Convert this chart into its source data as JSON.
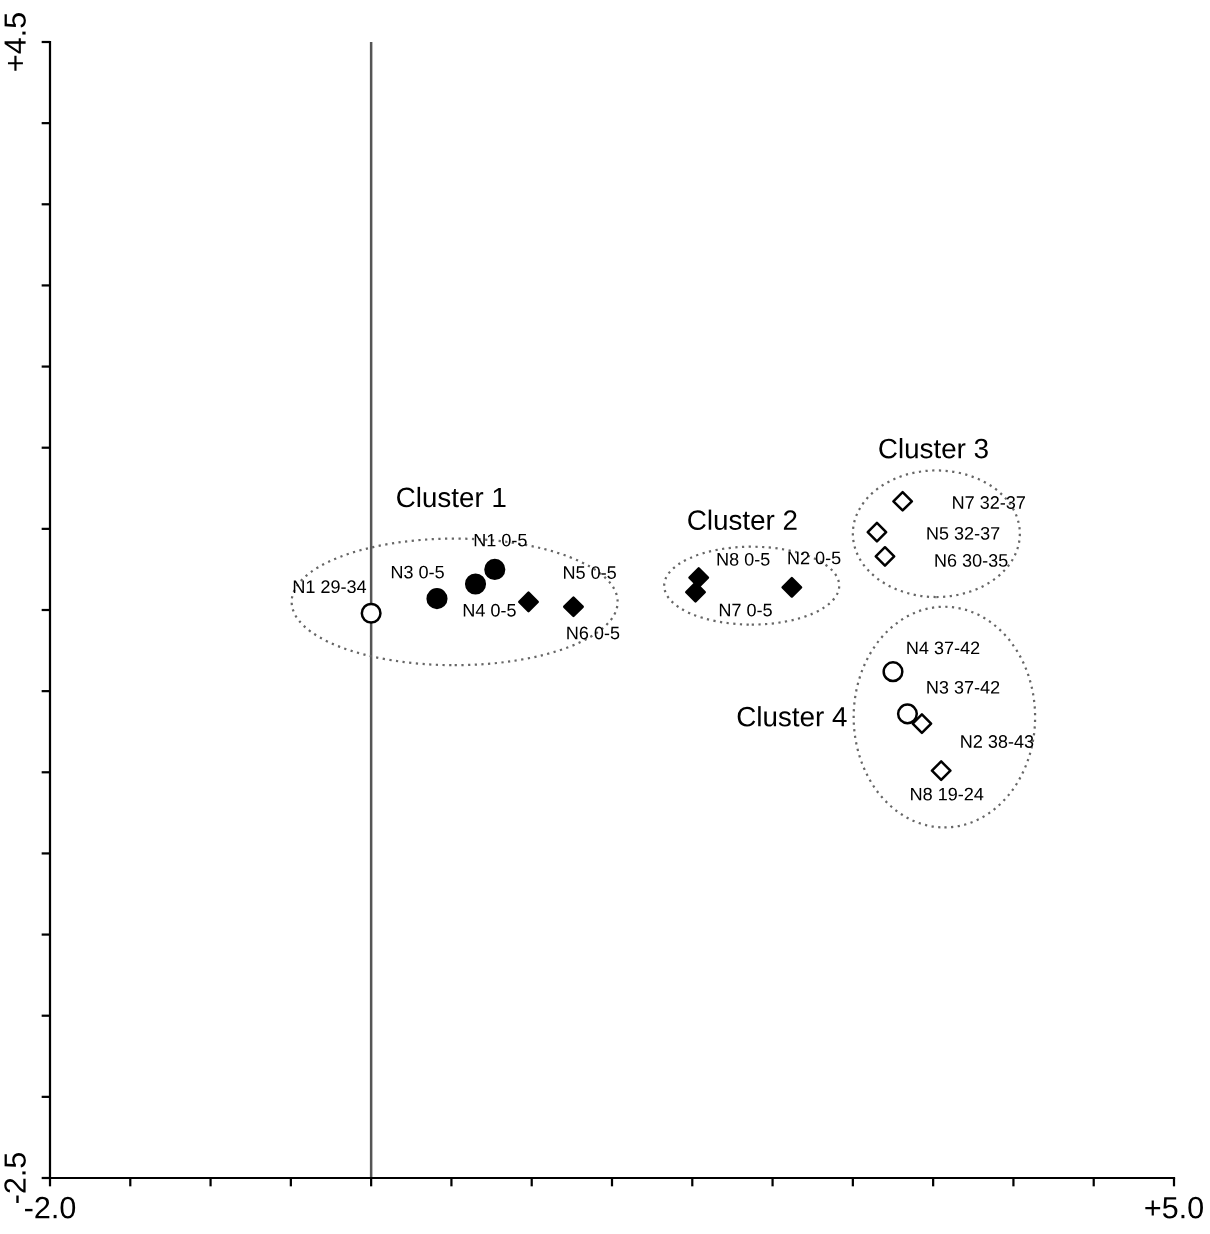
{
  "chart_data": {
    "type": "scatter",
    "xlim": [
      -2.0,
      5.0
    ],
    "ylim": [
      -2.5,
      4.5
    ],
    "xticks": [
      {
        "value": -2.0,
        "label": "-2.0"
      },
      {
        "value": -1.5,
        "label": null
      },
      {
        "value": -1.0,
        "label": null
      },
      {
        "value": -0.5,
        "label": null
      },
      {
        "value": 0.0,
        "label": null
      },
      {
        "value": 0.5,
        "label": null
      },
      {
        "value": 1.0,
        "label": null
      },
      {
        "value": 1.5,
        "label": null
      },
      {
        "value": 2.0,
        "label": null
      },
      {
        "value": 2.5,
        "label": null
      },
      {
        "value": 3.0,
        "label": null
      },
      {
        "value": 3.5,
        "label": null
      },
      {
        "value": 4.0,
        "label": null
      },
      {
        "value": 4.5,
        "label": null
      },
      {
        "value": 5.0,
        "label": "+5.0"
      }
    ],
    "yticks": [
      {
        "value": -2.5,
        "label": "-2.5"
      },
      {
        "value": -2.0,
        "label": null
      },
      {
        "value": -1.5,
        "label": null
      },
      {
        "value": -1.0,
        "label": null
      },
      {
        "value": -0.5,
        "label": null
      },
      {
        "value": 0.0,
        "label": null
      },
      {
        "value": 0.5,
        "label": null
      },
      {
        "value": 1.0,
        "label": null
      },
      {
        "value": 1.5,
        "label": null
      },
      {
        "value": 2.0,
        "label": null
      },
      {
        "value": 2.5,
        "label": null
      },
      {
        "value": 3.0,
        "label": null
      },
      {
        "value": 3.5,
        "label": null
      },
      {
        "value": 4.0,
        "label": null
      },
      {
        "value": 4.5,
        "label": "+4.5"
      }
    ],
    "grid": false,
    "legend": false,
    "ref_lines": [
      {
        "axis": "x",
        "value": 0.0,
        "color": "#555555"
      }
    ],
    "series": [
      {
        "color": "#000000",
        "marker": "circle",
        "x": [
          0.77,
          0.65,
          0.41
        ],
        "values": [
          1.25,
          1.16,
          1.07
        ]
      },
      {
        "color": "#000000",
        "marker": "diamond",
        "x": [
          0.98,
          1.26,
          2.04,
          2.02,
          2.62
        ],
        "values": [
          1.05,
          1.02,
          1.2,
          1.11,
          1.14
        ]
      },
      {
        "color": "#ffffff",
        "marker": "circle",
        "x": [
          0.0,
          3.25,
          3.34
        ],
        "values": [
          0.98,
          0.62,
          0.36
        ]
      },
      {
        "color": "#ffffff",
        "marker": "diamond",
        "x": [
          3.31,
          3.15,
          3.2,
          3.43,
          3.55
        ],
        "values": [
          1.67,
          1.48,
          1.33,
          0.3,
          0.01
        ]
      }
    ],
    "annotations": [
      "Cluster 1",
      "Cluster 2",
      "Cluster 3",
      "Cluster 4",
      {
        "text": "N1 29-34",
        "x": 0.0,
        "y": 0.98
      },
      {
        "text": "N1 0-5",
        "x": 0.77,
        "y": 1.25
      },
      {
        "text": "N3 0-5",
        "x": 0.41,
        "y": 1.07
      },
      {
        "text": "N4 0-5",
        "x": 0.65,
        "y": 1.16
      },
      {
        "text": "N5 0-5",
        "x": 0.98,
        "y": 1.05
      },
      {
        "text": "N6 0-5",
        "x": 1.26,
        "y": 1.02
      },
      {
        "text": "N8 0-5",
        "x": 2.04,
        "y": 1.2
      },
      {
        "text": "N7 0-5",
        "x": 2.02,
        "y": 1.11
      },
      {
        "text": "N2 0-5",
        "x": 2.62,
        "y": 1.14
      },
      {
        "text": "N7 32-37",
        "x": 3.31,
        "y": 1.67
      },
      {
        "text": "N5 32-37",
        "x": 3.15,
        "y": 1.48
      },
      {
        "text": "N6 30-35",
        "x": 3.2,
        "y": 1.33
      },
      {
        "text": "N4 37-42",
        "x": 3.25,
        "y": 0.62
      },
      {
        "text": "N3 37-42",
        "x": 3.34,
        "y": 0.36
      },
      {
        "text": "N2 38-43",
        "x": 3.43,
        "y": 0.3
      },
      {
        "text": "N8 19-24",
        "x": 3.55,
        "y": 0.01
      }
    ]
  }
}
